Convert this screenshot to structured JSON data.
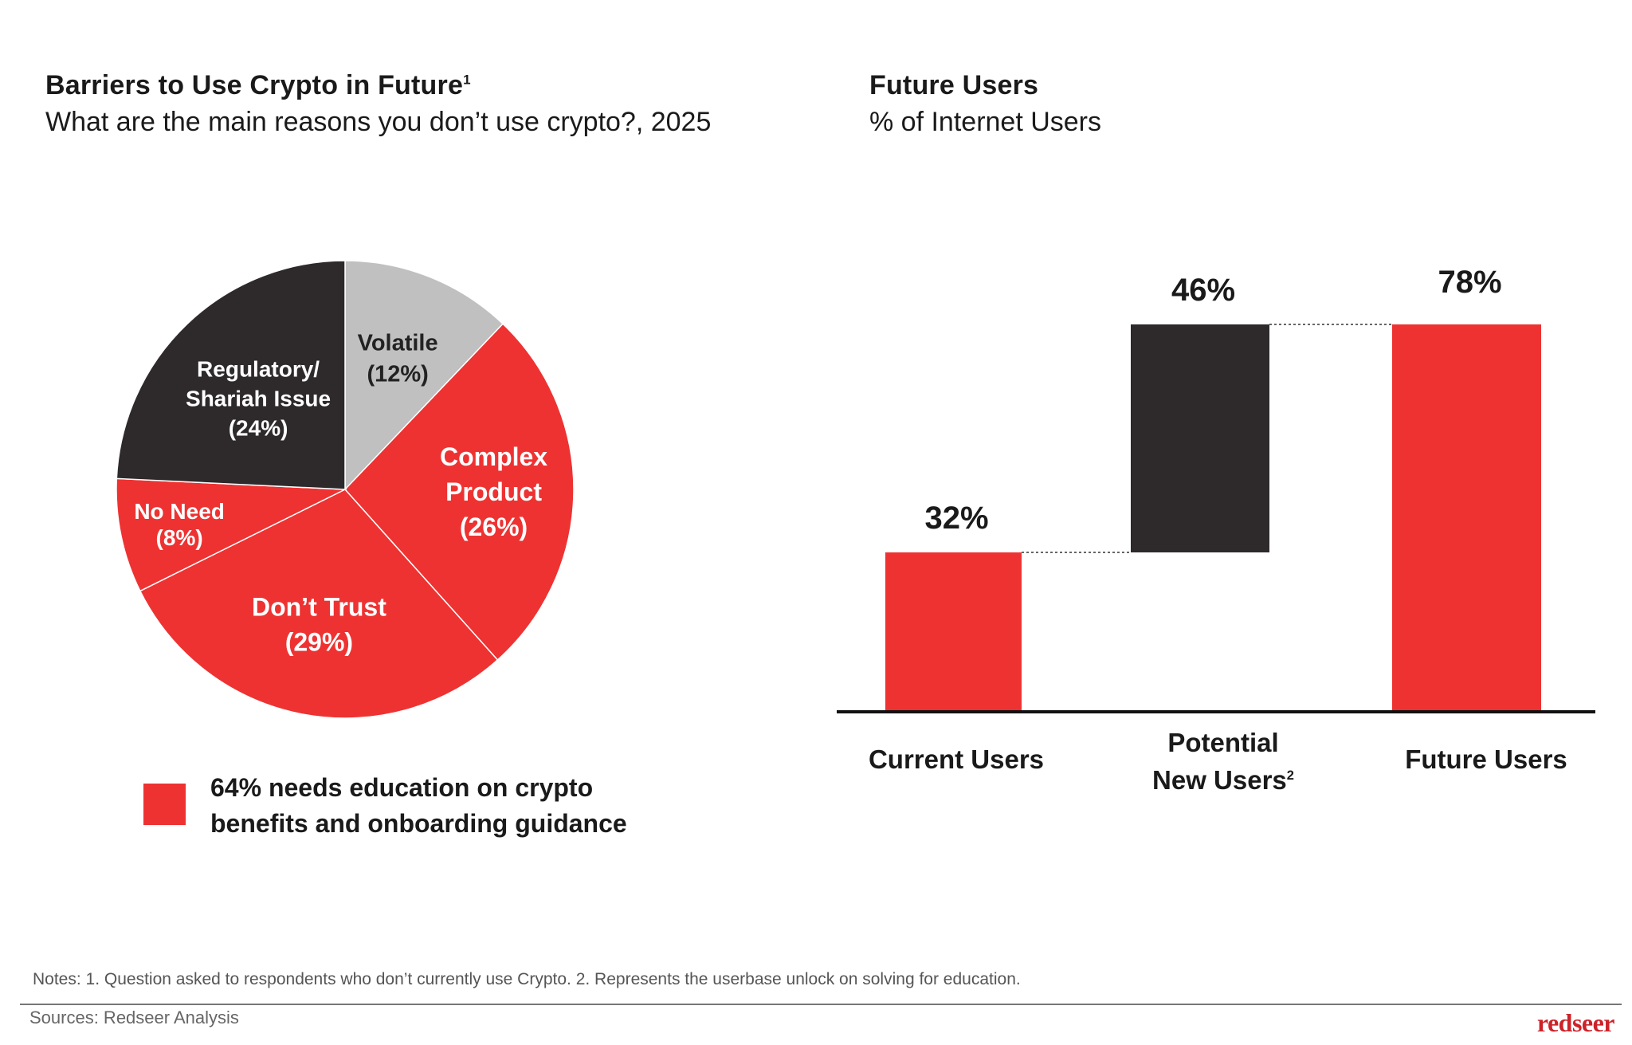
{
  "left_panel": {
    "title": "Barriers to Use Crypto in Future",
    "title_note": "1",
    "subtitle": "What are the main reasons you don’t use crypto?, 2025"
  },
  "right_panel": {
    "title": "Future Users",
    "subtitle": "% of Internet Users"
  },
  "legend": {
    "text_line1": "64% needs education on crypto",
    "text_line2": "benefits and onboarding guidance",
    "color": "#ee3232"
  },
  "footer": {
    "notes": "Notes: 1. Question asked to respondents who don’t currently use Crypto. 2. Represents the userbase unlock on solving for education.",
    "sources": "Sources: Redseer Analysis",
    "logo": "redseer"
  },
  "colors": {
    "red": "#ee3232",
    "dark": "#2e2a2b",
    "grey": "#c0c0c0"
  },
  "chart_data": [
    {
      "type": "pie",
      "title": "Barriers to Use Crypto in Future",
      "subtitle": "What are the main reasons you don’t use crypto?, 2025",
      "slices": [
        {
          "name": "Volatile",
          "lines": [
            "Volatile",
            "(12%)"
          ],
          "value": 12,
          "color": "#c0c0c0"
        },
        {
          "name": "Complex Product",
          "lines": [
            "Complex",
            "Product",
            "(26%)"
          ],
          "value": 26,
          "color": "#ee3232"
        },
        {
          "name": "Don’t Trust",
          "lines": [
            "Don’t Trust",
            "(29%)"
          ],
          "value": 29,
          "color": "#ee3232"
        },
        {
          "name": "No Need",
          "lines": [
            "No Need",
            "(8%)"
          ],
          "value": 8,
          "color": "#ee3232"
        },
        {
          "name": "Regulatory/Shariah Issue",
          "lines": [
            "Regulatory/",
            "Shariah Issue",
            "(24%)"
          ],
          "value": 24,
          "color": "#2e2a2b"
        }
      ]
    },
    {
      "type": "bar",
      "subtype": "waterfall",
      "title": "Future Users",
      "ylabel": "% of Internet Users",
      "ylim": [
        0,
        78
      ],
      "categories": [
        "Current Users",
        "Potential New Users",
        "Future Users"
      ],
      "bars": [
        {
          "category": "Current Users",
          "start": 0,
          "end": 32,
          "label": "32%",
          "color": "#ee3232"
        },
        {
          "category": "Potential New Users",
          "start": 32,
          "end": 78,
          "label": "46%",
          "color": "#2e2a2b"
        },
        {
          "category": "Future Users",
          "start": 0,
          "end": 78,
          "label": "78%",
          "color": "#ee3232"
        }
      ],
      "category_labels": {
        "current": "Current Users",
        "potential_line1": "Potential",
        "potential_line2": "New Users",
        "potential_note": "2",
        "future": "Future Users"
      }
    }
  ]
}
